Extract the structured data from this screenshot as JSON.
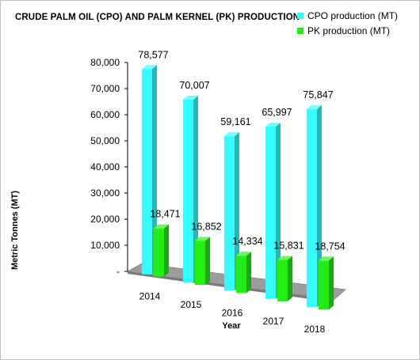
{
  "chart_data": {
    "type": "bar",
    "title": "CRUDE  PALM OIL (CPO) AND PALM KERNEL (PK) PRODUCTION",
    "xlabel": "Year",
    "ylabel": "Metric Tonnes (MT)",
    "categories": [
      "2014",
      "2015",
      "2016",
      "2017",
      "2018"
    ],
    "series": [
      {
        "name": "CPO production (MT)",
        "color": "#33ffff",
        "values": [
          78577,
          70007,
          59161,
          65997,
          75847
        ],
        "labels": [
          "78,577",
          "70,007",
          "59,161",
          "65,997",
          "75,847"
        ]
      },
      {
        "name": "PK production (MT)",
        "color": "#22ee11",
        "values": [
          18471,
          16852,
          14334,
          15831,
          18754
        ],
        "labels": [
          "18,471",
          "16,852",
          "14,334",
          "15,831",
          "18,754"
        ]
      }
    ],
    "ylim": [
      0,
      80000
    ],
    "yticks": [
      0,
      10000,
      20000,
      30000,
      40000,
      50000,
      60000,
      70000,
      80000
    ],
    "ytick_labels": [
      "-",
      "10,000",
      "20,000",
      "30,000",
      "40,000",
      "50,000",
      "60,000",
      "70,000",
      "80,000"
    ],
    "grid": false,
    "legend": "top-right",
    "style": "3d-column"
  }
}
